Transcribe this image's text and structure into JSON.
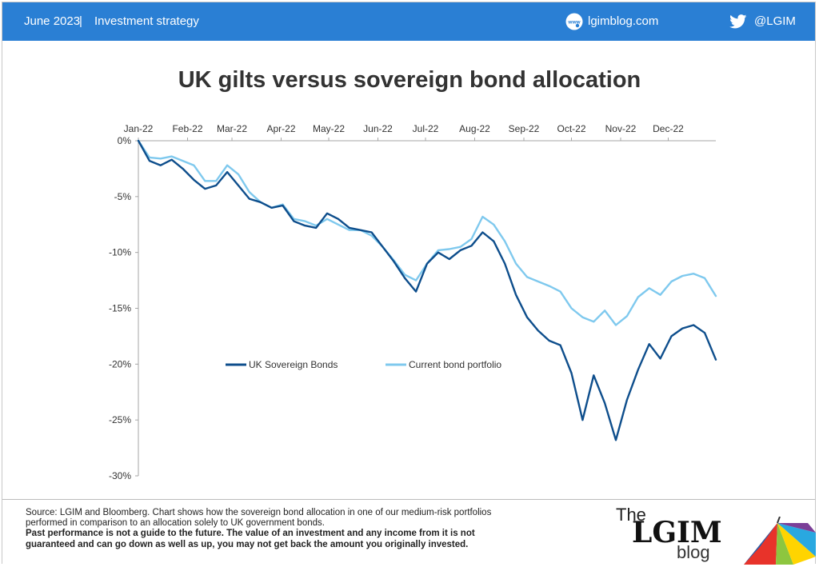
{
  "header": {
    "date": "June 2023",
    "separator": "|",
    "category": "Investment strategy",
    "site": "lgimblog.com",
    "site_icon": "www-globe-icon",
    "twitter_icon": "twitter-bird-icon",
    "handle": "@LGIM",
    "bar_color": "#2a7fd4"
  },
  "chart_data": {
    "type": "line",
    "title": "UK gilts versus sovereign bond allocation",
    "xlabel": "",
    "ylabel": "",
    "x_tick_labels": [
      "Jan-22",
      "Feb-22",
      "Mar-22",
      "Apr-22",
      "May-22",
      "Jun-22",
      "Jul-22",
      "Aug-22",
      "Sep-22",
      "Oct-22",
      "Nov-22",
      "Dec-22"
    ],
    "y_tick_labels": [
      "0%",
      "-5%",
      "-10%",
      "-15%",
      "-20%",
      "-25%",
      "-30%"
    ],
    "ylim": [
      -30,
      0
    ],
    "x_axis_position": "top",
    "grid": false,
    "legend_position": "center",
    "x": [
      "2022-01-01",
      "2022-01-08",
      "2022-01-15",
      "2022-01-22",
      "2022-01-29",
      "2022-02-05",
      "2022-02-12",
      "2022-02-19",
      "2022-02-26",
      "2022-03-05",
      "2022-03-12",
      "2022-03-19",
      "2022-03-26",
      "2022-04-02",
      "2022-04-09",
      "2022-04-16",
      "2022-04-23",
      "2022-04-30",
      "2022-05-07",
      "2022-05-14",
      "2022-05-21",
      "2022-05-28",
      "2022-06-04",
      "2022-06-11",
      "2022-06-18",
      "2022-06-25",
      "2022-07-02",
      "2022-07-09",
      "2022-07-16",
      "2022-07-23",
      "2022-07-30",
      "2022-08-06",
      "2022-08-13",
      "2022-08-20",
      "2022-08-27",
      "2022-09-03",
      "2022-09-10",
      "2022-09-17",
      "2022-09-24",
      "2022-10-01",
      "2022-10-08",
      "2022-10-15",
      "2022-10-22",
      "2022-10-29",
      "2022-11-05",
      "2022-11-12",
      "2022-11-19",
      "2022-11-26",
      "2022-12-03",
      "2022-12-10",
      "2022-12-17",
      "2022-12-24",
      "2022-12-31"
    ],
    "series": [
      {
        "name": "UK Sovereign Bonds",
        "color": "#0e4e8c",
        "values": [
          0,
          -1.8,
          -2.2,
          -1.7,
          -2.5,
          -3.5,
          -4.3,
          -4.0,
          -2.8,
          -4.0,
          -5.2,
          -5.5,
          -6.0,
          -5.8,
          -7.2,
          -7.6,
          -7.8,
          -6.5,
          -7.0,
          -7.8,
          -8.0,
          -8.2,
          -9.5,
          -10.8,
          -12.3,
          -13.5,
          -11.0,
          -10.0,
          -10.6,
          -9.8,
          -9.4,
          -8.2,
          -9.0,
          -11.0,
          -13.8,
          -15.8,
          -17.0,
          -17.9,
          -18.3,
          -20.8,
          -25.0,
          -21.0,
          -23.5,
          -26.8,
          -23.2,
          -20.5,
          -18.2,
          -19.5,
          -17.5,
          -16.8,
          -16.5,
          -17.2,
          -19.6
        ]
      },
      {
        "name": "Current bond portfolio",
        "color": "#7fc9ee",
        "values": [
          0,
          -1.5,
          -1.6,
          -1.4,
          -1.8,
          -2.2,
          -3.6,
          -3.6,
          -2.2,
          -3.0,
          -4.6,
          -5.5,
          -6.0,
          -5.7,
          -7.0,
          -7.2,
          -7.6,
          -7.0,
          -7.5,
          -8.0,
          -8.0,
          -8.5,
          -9.5,
          -10.7,
          -12.0,
          -12.5,
          -11.0,
          -9.8,
          -9.7,
          -9.5,
          -8.8,
          -6.8,
          -7.5,
          -9.0,
          -11.0,
          -12.2,
          -12.6,
          -13.0,
          -13.5,
          -15.0,
          -15.8,
          -16.2,
          -15.2,
          -16.5,
          -15.7,
          -14.0,
          -13.2,
          -13.8,
          -12.6,
          -12.1,
          -11.9,
          -12.3,
          -13.9
        ]
      }
    ]
  },
  "footer": {
    "source_line1": "Source: LGIM and Bloomberg. Chart shows how the sovereign bond allocation in one of our medium-risk portfolios",
    "source_line2": "performed in comparison to an allocation solely to UK government bonds.",
    "disclaimer_line1": "Past performance is not a guide to the future. The value of an investment and any income from it is not",
    "disclaimer_line2": "guaranteed and can go down as well as up, you may not get back the amount you originally invested."
  },
  "logo": {
    "the": "The",
    "lgim": "LGIM",
    "blog": "blog",
    "umbrella_icon": "umbrella-icon"
  }
}
